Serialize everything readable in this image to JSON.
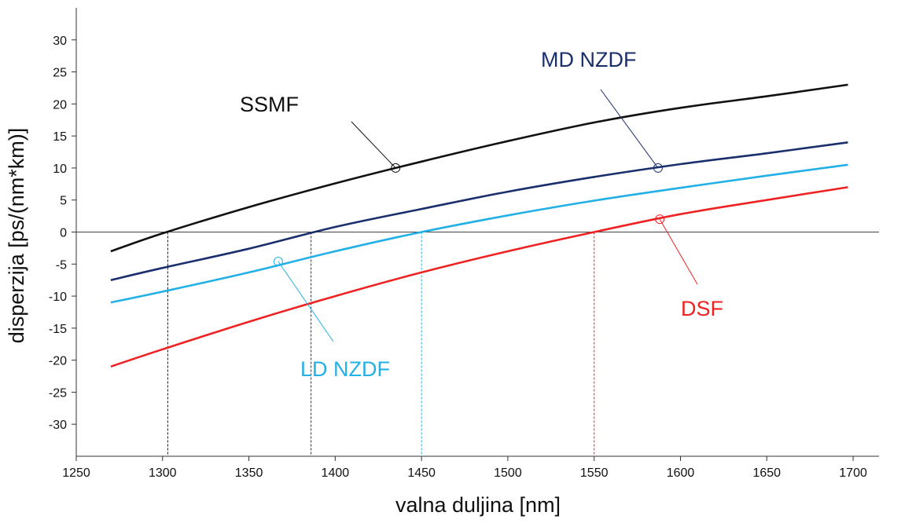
{
  "chart_data": {
    "type": "line",
    "xlabel": "valna duljina [nm]",
    "ylabel": "disperzija [ps/(nm*km)]",
    "xlim": [
      1250,
      1715
    ],
    "ylim": [
      -35,
      35
    ],
    "x_ticks": [
      1250,
      1300,
      1350,
      1400,
      1450,
      1500,
      1550,
      1600,
      1650,
      1700
    ],
    "y_ticks": [
      -30,
      -25,
      -20,
      -15,
      -10,
      -5,
      0,
      5,
      10,
      15,
      20,
      25,
      30
    ],
    "grid": false,
    "legend": "inline labels",
    "x": [
      1270,
      1300,
      1350,
      1400,
      1450,
      1500,
      1550,
      1600,
      1650,
      1697
    ],
    "series": [
      {
        "name": "SSMF",
        "color": "#111111",
        "values": [
          -3.0,
          -0.2,
          3.9,
          7.6,
          11.0,
          14.2,
          17.1,
          19.4,
          21.2,
          23.0
        ],
        "zero_crossing": 1303,
        "marker": [
          1435,
          10
        ]
      },
      {
        "name": "MD NZDF",
        "color": "#1a2f6b",
        "values": [
          -7.5,
          -5.6,
          -2.6,
          0.8,
          3.6,
          6.3,
          8.6,
          10.6,
          12.3,
          14.0
        ],
        "zero_crossing": 1386,
        "marker": [
          1587,
          10
        ]
      },
      {
        "name": "LD NZDF",
        "color": "#22b0e6",
        "values": [
          -11.0,
          -9.3,
          -6.3,
          -3.0,
          0.0,
          2.6,
          4.9,
          6.9,
          8.8,
          10.5
        ],
        "zero_crossing": 1450,
        "marker": [
          1367,
          -4.6
        ]
      },
      {
        "name": "DSF",
        "color": "#ee2222",
        "values": [
          -21.0,
          -18.3,
          -14.0,
          -10.0,
          -6.3,
          -3.0,
          0.0,
          2.8,
          5.0,
          7.0
        ],
        "zero_crossing": 1550,
        "marker": [
          1588,
          2
        ]
      }
    ]
  }
}
